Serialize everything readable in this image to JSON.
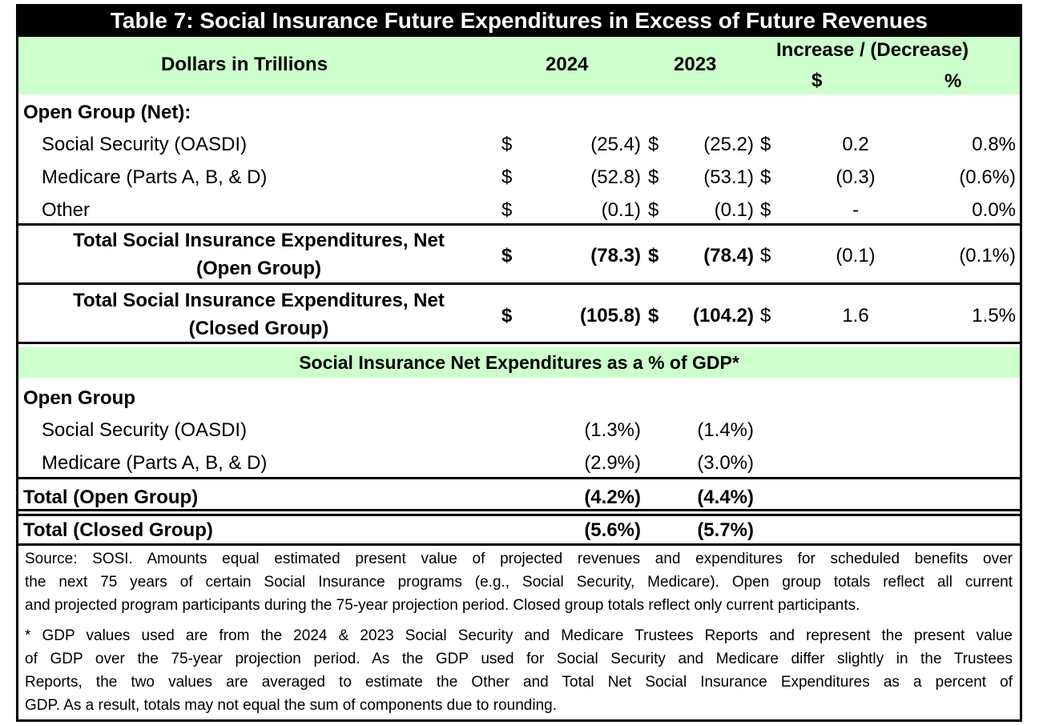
{
  "title": "Table 7: Social Insurance Future Expenditures in Excess of Future Revenues",
  "header": {
    "label": "Dollars in Trillions",
    "col_2024": "2024",
    "col_2023": "2023",
    "change_label": "Increase / (Decrease)",
    "change_dollar": "$",
    "change_pct": "%"
  },
  "open_group": {
    "heading": "Open Group (Net):",
    "rows": [
      {
        "label": "Social Security (OASDI)",
        "cur1": "$",
        "v2024": "(25.4)",
        "cur2": "$",
        "v2023": "(25.2)",
        "cur3": "$",
        "chg": "0.2",
        "pct": "0.8%"
      },
      {
        "label": "Medicare (Parts A, B, & D)",
        "cur1": "$",
        "v2024": "(52.8)",
        "cur2": "$",
        "v2023": "(53.1)",
        "cur3": "$",
        "chg": "(0.3)",
        "pct": "(0.6%)"
      },
      {
        "label": "Other",
        "cur1": "$",
        "v2024": "(0.1)",
        "cur2": "$",
        "v2023": "(0.1)",
        "cur3": "$",
        "chg": "-",
        "pct": "0.0%"
      }
    ],
    "total": {
      "line1": "Total Social Insurance Expenditures, Net",
      "line2": "(Open Group)",
      "cur1": "$",
      "v2024": "(78.3)",
      "cur2": "$",
      "v2023": "(78.4)",
      "cur3": "$",
      "chg": "(0.1)",
      "pct": "(0.1%)"
    }
  },
  "closed_total": {
    "line1": "Total Social Insurance Expenditures, Net",
    "line2": "(Closed Group)",
    "cur1": "$",
    "v2024": "(105.8)",
    "cur2": "$",
    "v2023": "(104.2)",
    "cur3": "$",
    "chg": "1.6",
    "pct": "1.5%"
  },
  "gdp_section": {
    "heading": "Social Insurance Net Expenditures as a % of GDP*",
    "group_label": "Open Group",
    "rows": [
      {
        "label": "Social Security (OASDI)",
        "v2024": "(1.3%)",
        "v2023": "(1.4%)"
      },
      {
        "label": "Medicare (Parts A, B, & D)",
        "v2024": "(2.9%)",
        "v2023": "(3.0%)"
      }
    ],
    "total_open": {
      "label": "Total (Open Group)",
      "v2024": "(4.2%)",
      "v2023": "(4.4%)"
    },
    "total_closed": {
      "label": "Total (Closed Group)",
      "v2024": "(5.6%)",
      "v2023": "(5.7%)"
    }
  },
  "notes": {
    "source": [
      "Source: SOSI. Amounts equal estimated present value of projected revenues and expenditures for scheduled benefits over",
      "the next 75 years of certain Social Insurance programs (e.g., Social Security, Medicare). Open group totals reflect all current",
      "and projected program participants during the 75-year projection period. Closed group totals reflect only current participants."
    ],
    "gdp": [
      "* GDP values used are from the 2024 & 2023 Social Security and Medicare Trustees Reports and represent the present value",
      "of GDP over the 75-year projection period. As the GDP used for Social Security and Medicare differ slightly in the Trustees",
      "Reports, the two values are averaged to estimate the Other and Total Net Social Insurance Expenditures as a percent of",
      "GDP. As a result, totals may not equal the sum of components due to rounding."
    ]
  }
}
